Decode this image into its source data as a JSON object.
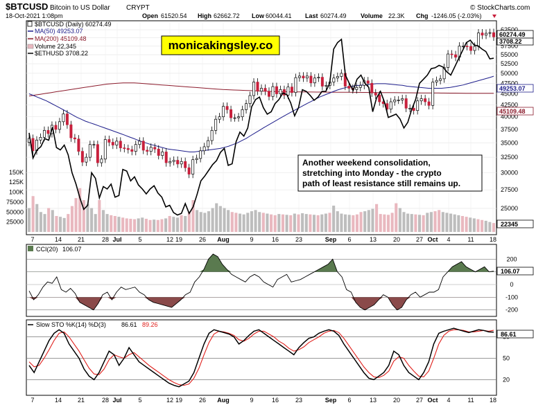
{
  "header": {
    "symbol": "$BTCUSD",
    "name": "Bitcoin to US Dollar",
    "exchange": "CRYPT",
    "watermark": "© StockCharts.com",
    "date": "18-Oct-2021 1:08pm",
    "open_label": "Open",
    "open": "61520.54",
    "high_label": "High",
    "high": "62662.72",
    "low_label": "Low",
    "low": "60044.41",
    "last_label": "Last",
    "last": "60274.49",
    "volume_label": "Volume",
    "volume": "22.3K",
    "chg_label": "Chg",
    "chg": "-1246.05 (-2.03%)"
  },
  "legend": [
    {
      "text": "$BTCUSD (Daily) 60274.49",
      "color": "#000000"
    },
    {
      "text": "MA(50) 49253.07",
      "color": "#1c1c8a"
    },
    {
      "text": "MA(200) 45109.48",
      "color": "#8b1a2b"
    },
    {
      "text": "Volume 22,345",
      "color": "#000000"
    },
    {
      "text": "$ETHUSD 3708.22",
      "color": "#000000"
    }
  ],
  "brand_box": "monicakingsley.co",
  "annotation": [
    "Another weekend consolidation,",
    "stretching into Monday - the crypto",
    "path of least resistance still remains up."
  ],
  "price_boxes": {
    "last": "60274.49",
    "eth": "3708.22",
    "ma50": "49253.07",
    "ma200": "45109.48",
    "volume": "22345",
    "cci": "106.07",
    "sto": "86.61"
  },
  "cci_legend": {
    "name": "CCI(20)",
    "value": "106.07"
  },
  "sto_legend": {
    "name": "Slow STO %K(14) %D(3)",
    "k": "86.61",
    "d": "89.26"
  },
  "colors": {
    "up": "#ffffff",
    "down": "#c8203c",
    "ma50": "#1c1c8a",
    "ma200": "#8b1a2b",
    "cci_fill_pos": "#5a7a4f",
    "cci_fill_neg": "#8a4a4a",
    "k_line": "#000000",
    "d_line": "#e0201c"
  },
  "chart_data": {
    "type": "line",
    "title": "$BTCUSD",
    "x_ticks": [
      "7",
      "14",
      "21",
      "28",
      "Jul",
      "5",
      "12",
      "19",
      "26",
      "Aug",
      "9",
      "16",
      "23",
      "Sep",
      "6",
      "13",
      "20",
      "27",
      "Oct",
      "4",
      "11",
      "18"
    ],
    "price_axis": {
      "ticks": [
        25000,
        27500,
        30000,
        32500,
        35000,
        37500,
        40000,
        42500,
        45000,
        47500,
        50000,
        52500,
        55000,
        57500,
        60000,
        62500
      ],
      "ylim": [
        22000,
        65000
      ],
      "scale": "log"
    },
    "volume_axis": {
      "ticks": [
        "25000",
        "50000",
        "75000",
        "100K",
        "125K",
        "150K"
      ],
      "ylim": [
        0,
        200000
      ]
    },
    "cci_axis": {
      "ticks": [
        200,
        100,
        0,
        -100,
        -200
      ],
      "ylim": [
        -240,
        300
      ]
    },
    "sto_axis": {
      "ticks": [
        80,
        50,
        20
      ],
      "ylim": [
        0,
        100
      ]
    },
    "btc_close": [
      35800,
      33600,
      35500,
      36000,
      37300,
      36700,
      38300,
      37500,
      39000,
      40600,
      38400,
      35900,
      35700,
      33500,
      31700,
      32500,
      34700,
      34700,
      31600,
      32200,
      35600,
      35100,
      34600,
      35300,
      34100,
      34000,
      33800,
      33500,
      34700,
      35300,
      33700,
      33500,
      34200,
      33900,
      32800,
      33400,
      31600,
      31800,
      32000,
      31400,
      31800,
      30800,
      29800,
      32100,
      32300,
      33600,
      34300,
      35400,
      37300,
      39500,
      40000,
      42200,
      41500,
      39800,
      39800,
      40000,
      41500,
      42800,
      44600,
      47800,
      45600,
      46300,
      45600,
      44400,
      46700,
      45000,
      46000,
      44700,
      46600,
      45300,
      48900,
      49300,
      48800,
      49300,
      47600,
      48800,
      49000,
      46800,
      47000,
      47800,
      48800,
      49200,
      50000,
      46800,
      46300,
      46000,
      46500,
      47000,
      48100,
      47500,
      45200,
      44700,
      43200,
      42800,
      41600,
      43200,
      43600,
      43600,
      43900,
      41800,
      41800,
      41300,
      43400,
      43900,
      43200,
      42400,
      47800,
      48200,
      48600,
      51500,
      55200,
      55000,
      54300,
      57500,
      57500,
      57400,
      56200,
      57400,
      61500,
      60800,
      61400,
      61600,
      60274
    ],
    "eth_close": [
      2790,
      2480,
      2580,
      2620,
      2720,
      2700,
      2860,
      2610,
      2580,
      2640,
      2520,
      2300,
      2160,
      1990,
      1850,
      1900,
      2300,
      2230,
      1990,
      2130,
      2100,
      2160,
      2000,
      2020,
      2340,
      2320,
      2200,
      2250,
      2150,
      2100,
      2040,
      2100,
      2140,
      2050,
      2000,
      1880,
      1900,
      1810,
      1780,
      1800,
      1920,
      1800,
      1880,
      2030,
      2200,
      2260,
      2330,
      2400,
      2450,
      2550,
      2600,
      2390,
      2410,
      2680,
      2800,
      2750,
      2850,
      3110,
      3200,
      3230,
      3100,
      3020,
      3050,
      3150,
      3200,
      3280,
      3260,
      3160,
      3000,
      3100,
      3320,
      3300,
      3250,
      3190,
      3230,
      3300,
      3300,
      3400,
      3820,
      3900,
      3940,
      3500,
      3400,
      3310,
      3450,
      3500,
      3400,
      3350,
      3050,
      3220,
      3300,
      3170,
      2980,
      3000,
      3020,
      2960,
      2850,
      2920,
      3080,
      3200,
      3400,
      3450,
      3500,
      3580,
      3590,
      3620,
      3600,
      3540,
      3500,
      3600,
      3700,
      3800,
      3900,
      3930,
      3870,
      3860,
      3820,
      3790,
      3700,
      3708
    ],
    "ma50": [
      45000,
      44600,
      44200,
      43800,
      43400,
      42900,
      42400,
      41900,
      41400,
      40900,
      40400,
      39900,
      39500,
      39100,
      38800,
      38500,
      38200,
      37900,
      37600,
      37300,
      37000,
      36700,
      36400,
      36100,
      35800,
      35500,
      35200,
      34950,
      34700,
      34500,
      34300,
      34100,
      33900,
      33800,
      33700,
      33600,
      33500,
      33400,
      33400,
      33500,
      33600,
      33700,
      33800,
      33900,
      34000,
      34200,
      34400,
      34700,
      35000,
      35400,
      35800,
      36300,
      36800,
      37300,
      37800,
      38300,
      38800,
      39300,
      39800,
      40300,
      40800,
      41300,
      41800,
      42300,
      42800,
      43300,
      43800,
      44300,
      44700,
      45100,
      45500,
      45900,
      46200,
      46500,
      46700,
      46900,
      47000,
      47100,
      47200,
      47300,
      47400,
      47400,
      47400,
      47300,
      47200,
      47100,
      47000,
      46800,
      46700,
      46600,
      46500,
      46400,
      46300,
      46300,
      46300,
      46300,
      46400,
      46500,
      46700,
      46900,
      47100,
      47400,
      47700,
      48000,
      48300,
      48600,
      48900,
      49253
    ],
    "ma200": [
      44500,
      44700,
      44900,
      45100,
      45300,
      45500,
      45700,
      45900,
      46100,
      46300,
      46500,
      46700,
      46900,
      47100,
      47300,
      47400,
      47500,
      47600,
      47600,
      47600,
      47500,
      47400,
      47300,
      47200,
      47100,
      47000,
      46900,
      46800,
      46700,
      46600,
      46500,
      46400,
      46300,
      46200,
      46100,
      46000,
      45950,
      45900,
      45850,
      45800,
      45750,
      45700,
      45650,
      45600,
      45550,
      45500,
      45480,
      45460,
      45450,
      45440,
      45430,
      45420,
      45410,
      45400,
      45390,
      45380,
      45370,
      45360,
      45350,
      45340,
      45330,
      45320,
      45310,
      45300,
      45290,
      45280,
      45270,
      45260,
      45250,
      45240,
      45230,
      45220,
      45210,
      45200,
      45190,
      45180,
      45170,
      45160,
      45150,
      45140,
      45130,
      45120,
      45115,
      45110,
      45109
    ],
    "volume": [
      60000,
      90000,
      70000,
      50000,
      45000,
      60000,
      55000,
      40000,
      38000,
      35000,
      45000,
      65000,
      85000,
      110000,
      80000,
      70000,
      60000,
      45000,
      80000,
      55000,
      45000,
      42000,
      40000,
      38000,
      36000,
      34000,
      33000,
      32000,
      34000,
      36000,
      33000,
      30000,
      31000,
      30000,
      32000,
      34000,
      40000,
      38000,
      36000,
      42000,
      40000,
      50000,
      80000,
      55000,
      50000,
      48000,
      52000,
      60000,
      72000,
      65000,
      60000,
      55000,
      50000,
      48000,
      46000,
      44000,
      48000,
      52000,
      55000,
      50000,
      48000,
      46000,
      44000,
      42000,
      45000,
      44000,
      43000,
      42000,
      46000,
      44000,
      47000,
      45000,
      44000,
      43000,
      42000,
      44000,
      46000,
      48000,
      66000,
      52000,
      46000,
      44000,
      43000,
      42000,
      44000,
      50000,
      52000,
      55000,
      58000,
      70000,
      45000,
      44000,
      43000,
      48000,
      72000,
      60000,
      50000,
      46000,
      45000,
      44000,
      43000,
      42000,
      48000,
      50000,
      52000,
      55000,
      50000,
      48000,
      46000,
      44000,
      42000,
      40000,
      38000,
      36000,
      34000,
      32000,
      30000,
      28000,
      25000,
      22345
    ],
    "cci": [
      -50,
      -120,
      -80,
      -20,
      20,
      10,
      60,
      -40,
      -60,
      -30,
      -70,
      -140,
      -160,
      -180,
      -200,
      -150,
      -80,
      -60,
      -120,
      -60,
      -20,
      -40,
      -30,
      -20,
      -60,
      -80,
      -120,
      -140,
      -150,
      -160,
      -170,
      -180,
      -150,
      -120,
      -80,
      -60,
      20,
      60,
      120,
      200,
      240,
      220,
      160,
      120,
      80,
      60,
      40,
      20,
      60,
      80,
      60,
      20,
      0,
      -20,
      40,
      60,
      80,
      20,
      30,
      40,
      60,
      80,
      100,
      120,
      140,
      160,
      200,
      100,
      60,
      -40,
      -60,
      -140,
      -180,
      -200,
      -180,
      -160,
      -120,
      -80,
      -100,
      -160,
      -200,
      -180,
      -120,
      -80,
      -60,
      -100,
      -80,
      -60,
      -60,
      -40,
      60,
      100,
      140,
      160,
      180,
      140,
      120,
      100,
      120,
      140,
      100,
      106
    ],
    "sto_k": [
      40,
      30,
      45,
      60,
      75,
      85,
      90,
      85,
      70,
      60,
      50,
      35,
      25,
      20,
      30,
      45,
      60,
      55,
      40,
      50,
      65,
      55,
      45,
      40,
      35,
      30,
      25,
      20,
      15,
      12,
      10,
      14,
      18,
      30,
      50,
      70,
      85,
      90,
      88,
      86,
      84,
      80,
      70,
      75,
      82,
      88,
      90,
      85,
      80,
      75,
      70,
      65,
      60,
      55,
      65,
      72,
      78,
      80,
      85,
      88,
      90,
      88,
      82,
      70,
      60,
      50,
      40,
      30,
      22,
      20,
      25,
      30,
      40,
      60,
      55,
      40,
      30,
      25,
      20,
      30,
      45,
      70,
      85,
      88,
      90,
      92,
      90,
      88,
      86,
      88,
      90,
      89,
      87,
      86.61
    ],
    "sto_d": [
      45,
      38,
      40,
      50,
      62,
      75,
      85,
      87,
      80,
      70,
      60,
      48,
      36,
      28,
      27,
      35,
      48,
      55,
      52,
      50,
      55,
      58,
      52,
      46,
      40,
      35,
      30,
      25,
      20,
      16,
      13,
      12,
      14,
      22,
      36,
      55,
      72,
      84,
      88,
      87,
      85,
      82,
      76,
      74,
      78,
      84,
      88,
      88,
      84,
      80,
      74,
      70,
      64,
      60,
      62,
      66,
      72,
      76,
      80,
      85,
      88,
      89,
      86,
      78,
      68,
      58,
      48,
      38,
      30,
      24,
      23,
      26,
      32,
      46,
      52,
      50,
      40,
      32,
      25,
      24,
      32,
      50,
      70,
      82,
      88,
      90,
      90,
      89,
      87,
      87,
      88,
      89,
      88,
      89.26
    ]
  }
}
